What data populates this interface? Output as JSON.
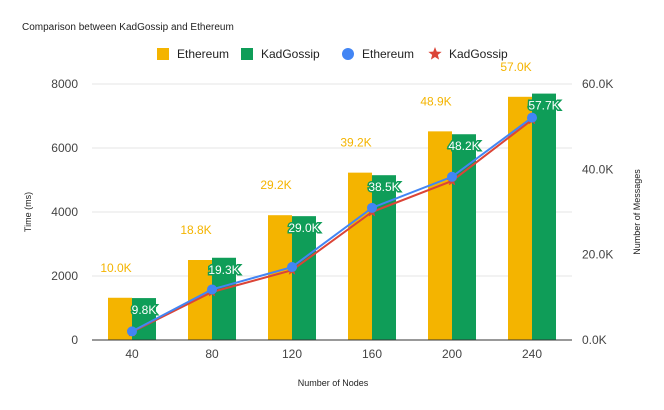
{
  "chart_data": {
    "type": "bar",
    "title": "Comparison between KadGossip and Ethereum",
    "xlabel": "Number of Nodes",
    "ylabel": "Time (ms)",
    "y2label": "Number of Messages",
    "categories": [
      "40",
      "80",
      "120",
      "160",
      "200",
      "240"
    ],
    "ylim": [
      0,
      8000
    ],
    "yticks": [
      "0",
      "2000",
      "4000",
      "6000",
      "8000"
    ],
    "y2lim": [
      0,
      60000
    ],
    "y2ticks": [
      "0.0K",
      "20.0K",
      "40.0K",
      "60.0K"
    ],
    "grid": true,
    "legend_position": "top",
    "series": [
      {
        "name": "Ethereum",
        "kind": "bar",
        "axis": "left",
        "color": "#F4B400",
        "values": [
          1320,
          2500,
          3900,
          5230,
          6520,
          7600
        ],
        "labels": [
          "10.0K",
          "18.8K",
          "29.2K",
          "39.2K",
          "48.9K",
          "57.0K"
        ]
      },
      {
        "name": "KadGossip",
        "kind": "bar",
        "axis": "left",
        "color": "#0F9D58",
        "values": [
          1310,
          2570,
          3870,
          5150,
          6430,
          7700
        ],
        "labels": [
          "9.8K",
          "19.3K",
          "29.0K",
          "38.5K",
          "48.2K",
          "57.7K"
        ]
      },
      {
        "name": "Ethereum",
        "kind": "line",
        "axis": "left",
        "marker": "circle",
        "color": "#4285F4",
        "values": [
          270,
          1580,
          2280,
          4130,
          5100,
          6950
        ]
      },
      {
        "name": "KadGossip",
        "kind": "line",
        "axis": "left",
        "marker": "star",
        "color": "#DB4437",
        "values": [
          250,
          1500,
          2180,
          4000,
          4970,
          6880
        ]
      }
    ]
  }
}
